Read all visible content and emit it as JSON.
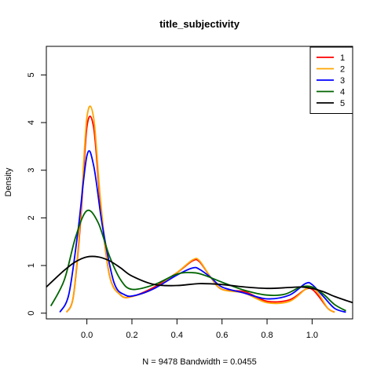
{
  "chart_data": {
    "type": "line",
    "title": "title_subjectivity",
    "xlabel": "N = 9478   Bandwidth = 0.0455",
    "ylabel": "Density",
    "xlim": [
      -0.18,
      1.18
    ],
    "ylim": [
      -0.12,
      5.6
    ],
    "x_ticks": [
      "0.0",
      "0.2",
      "0.4",
      "0.6",
      "0.8",
      "1.0"
    ],
    "y_ticks": [
      "0",
      "1",
      "2",
      "3",
      "4",
      "5"
    ],
    "legend_position": "top-right",
    "grid": false,
    "series": [
      {
        "name": "1",
        "color": "#ff0000",
        "x": [
          -0.09,
          -0.06,
          -0.03,
          0.0,
          0.03,
          0.06,
          0.1,
          0.15,
          0.2,
          0.3,
          0.4,
          0.47,
          0.5,
          0.55,
          0.6,
          0.7,
          0.8,
          0.9,
          0.97,
          1.0,
          1.03,
          1.07,
          1.1
        ],
        "y": [
          0.02,
          0.35,
          1.8,
          3.9,
          3.9,
          2.3,
          0.8,
          0.38,
          0.35,
          0.55,
          0.85,
          1.1,
          1.08,
          0.75,
          0.5,
          0.45,
          0.25,
          0.28,
          0.5,
          0.5,
          0.35,
          0.1,
          0.02
        ]
      },
      {
        "name": "2",
        "color": "#ffa500",
        "x": [
          -0.09,
          -0.06,
          -0.03,
          0.0,
          0.03,
          0.06,
          0.1,
          0.15,
          0.2,
          0.3,
          0.4,
          0.47,
          0.5,
          0.55,
          0.6,
          0.7,
          0.8,
          0.9,
          0.97,
          1.0,
          1.03,
          1.07,
          1.1
        ],
        "y": [
          0.02,
          0.35,
          1.9,
          4.1,
          4.1,
          2.4,
          0.8,
          0.38,
          0.35,
          0.52,
          0.85,
          1.12,
          1.1,
          0.75,
          0.5,
          0.42,
          0.22,
          0.25,
          0.5,
          0.55,
          0.4,
          0.1,
          0.02
        ]
      },
      {
        "name": "3",
        "color": "#0000ff",
        "x": [
          -0.12,
          -0.08,
          -0.04,
          0.0,
          0.03,
          0.07,
          0.12,
          0.17,
          0.22,
          0.3,
          0.4,
          0.47,
          0.5,
          0.55,
          0.6,
          0.7,
          0.8,
          0.9,
          0.97,
          1.0,
          1.05,
          1.1,
          1.15
        ],
        "y": [
          0.02,
          0.4,
          1.7,
          3.3,
          3.1,
          1.8,
          0.65,
          0.38,
          0.38,
          0.52,
          0.8,
          0.95,
          0.92,
          0.75,
          0.55,
          0.42,
          0.3,
          0.38,
          0.62,
          0.6,
          0.35,
          0.1,
          0.02
        ]
      },
      {
        "name": "4",
        "color": "#006400",
        "x": [
          -0.16,
          -0.1,
          -0.05,
          0.0,
          0.05,
          0.1,
          0.15,
          0.2,
          0.3,
          0.4,
          0.47,
          0.52,
          0.6,
          0.7,
          0.8,
          0.88,
          0.95,
          1.0,
          1.05,
          1.1,
          1.15
        ],
        "y": [
          0.15,
          0.7,
          1.6,
          2.15,
          1.9,
          1.2,
          0.7,
          0.5,
          0.6,
          0.82,
          0.85,
          0.8,
          0.65,
          0.48,
          0.38,
          0.4,
          0.55,
          0.55,
          0.4,
          0.18,
          0.05
        ]
      },
      {
        "name": "5",
        "color": "#000000",
        "x": [
          -0.18,
          -0.1,
          -0.05,
          0.0,
          0.05,
          0.1,
          0.15,
          0.2,
          0.3,
          0.4,
          0.5,
          0.6,
          0.7,
          0.8,
          0.9,
          0.95,
          1.0,
          1.05,
          1.1,
          1.18
        ],
        "y": [
          0.55,
          0.9,
          1.08,
          1.18,
          1.18,
          1.1,
          0.95,
          0.78,
          0.6,
          0.58,
          0.62,
          0.6,
          0.55,
          0.52,
          0.54,
          0.55,
          0.52,
          0.45,
          0.35,
          0.22
        ]
      }
    ]
  }
}
